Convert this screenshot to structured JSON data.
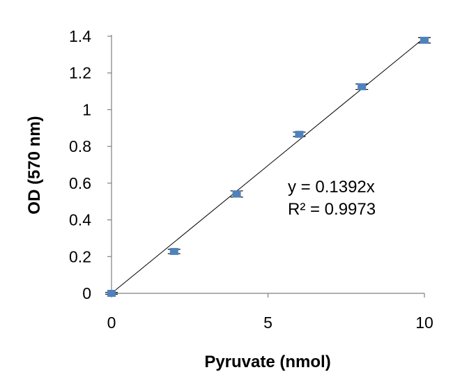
{
  "chart_data": {
    "type": "scatter",
    "title": "",
    "xlabel": "Pyruvate (nmol)",
    "ylabel": "OD (570 nm)",
    "xlim": [
      0,
      10
    ],
    "ylim": [
      0,
      1.4
    ],
    "x_ticks": [
      0,
      5,
      10
    ],
    "x_tick_labels": [
      "0",
      "5",
      "10"
    ],
    "y_ticks": [
      0,
      0.2,
      0.4,
      0.6,
      0.8,
      1.0,
      1.2,
      1.4
    ],
    "y_tick_labels": [
      "0",
      "0.2",
      "0.4",
      "0.6",
      "0.8",
      "1",
      "1.2",
      "1.4"
    ],
    "grid": false,
    "legend": "none",
    "series": [
      {
        "x": [
          0,
          2,
          4,
          6,
          8,
          10
        ],
        "y": [
          0.0,
          0.228,
          0.541,
          0.866,
          1.125,
          1.378
        ],
        "error": [
          0.005,
          0.012,
          0.017,
          0.012,
          0.015,
          0.015
        ],
        "color": "#4f81bd"
      }
    ],
    "trendline": {
      "type": "linear",
      "slope": 0.1392,
      "intercept": 0,
      "color": "#000000"
    },
    "annotations": {
      "equation": "y = 0.1392x",
      "r_squared": "R² = 0.9973"
    }
  }
}
